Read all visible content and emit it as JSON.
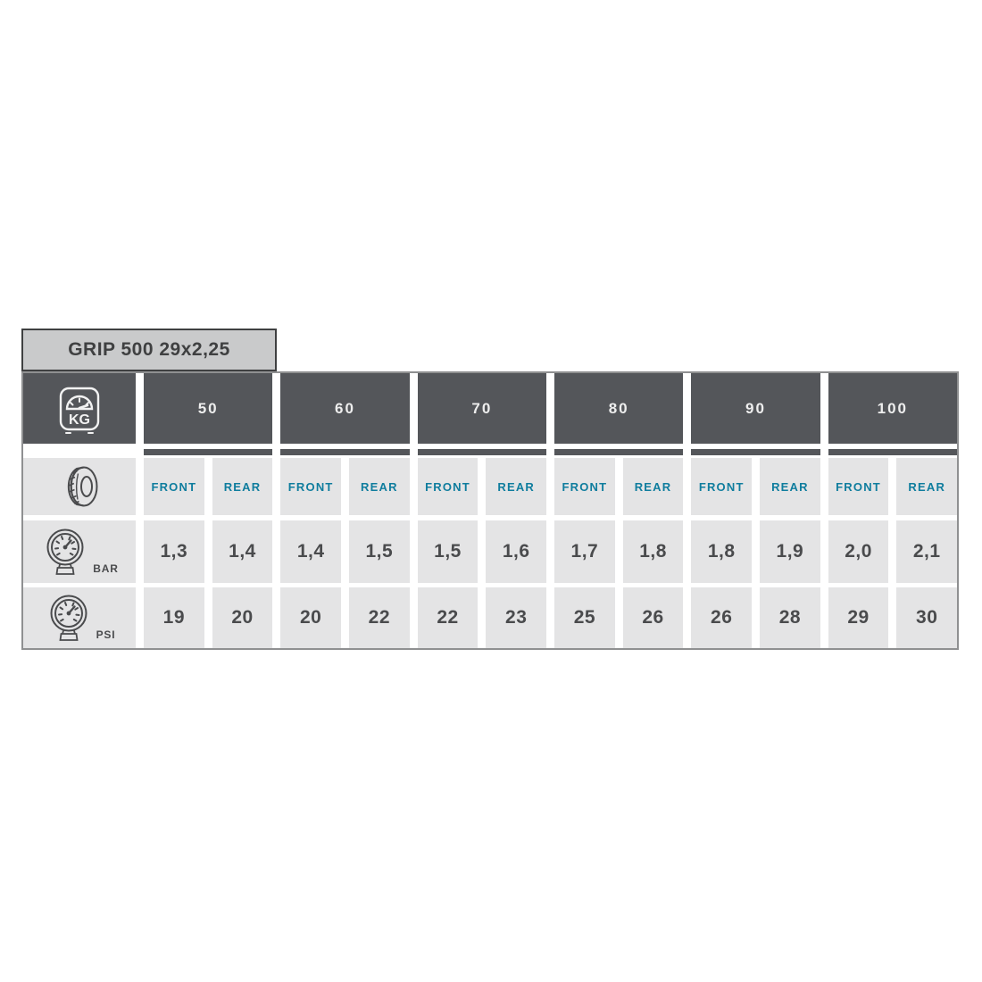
{
  "chart_data": {
    "type": "table",
    "title": "GRIP 500 29x2,25",
    "columns_rider_weight_kg": [
      50,
      60,
      70,
      80,
      90,
      100
    ],
    "sub_columns": [
      "FRONT",
      "REAR"
    ],
    "rows": [
      {
        "label": "BAR",
        "front": [
          1.3,
          1.4,
          1.5,
          1.7,
          1.8,
          2.0
        ],
        "rear": [
          1.4,
          1.5,
          1.6,
          1.8,
          1.9,
          2.1
        ]
      },
      {
        "label": "PSI",
        "front": [
          19,
          20,
          22,
          25,
          26,
          29
        ],
        "rear": [
          20,
          22,
          23,
          26,
          28,
          30
        ]
      }
    ]
  },
  "table": {
    "title": "GRIP 500 29x2,25",
    "weights": [
      "50",
      "60",
      "70",
      "80",
      "90",
      "100"
    ],
    "front_label": "FRONT",
    "rear_label": "REAR",
    "bar": {
      "label": "BAR",
      "values": [
        "1,3",
        "1,4",
        "1,4",
        "1,5",
        "1,5",
        "1,6",
        "1,7",
        "1,8",
        "1,8",
        "1,9",
        "2,0",
        "2,1"
      ]
    },
    "psi": {
      "label": "PSI",
      "values": [
        "19",
        "20",
        "20",
        "22",
        "22",
        "23",
        "25",
        "26",
        "26",
        "28",
        "29",
        "30"
      ]
    }
  },
  "icons": {
    "weight_unit": "kg-scale-icon",
    "tire": "tire-icon",
    "pressure": "pressure-gauge-icon"
  },
  "colors": {
    "header_dark": "#54565a",
    "cell_bg": "#e4e4e5",
    "title_bg": "#c9cacb",
    "title_border": "#3f4041",
    "table_border": "#8f9091",
    "front_rear_text": "#0f7d9e",
    "value_text": "#4a4b4d"
  }
}
